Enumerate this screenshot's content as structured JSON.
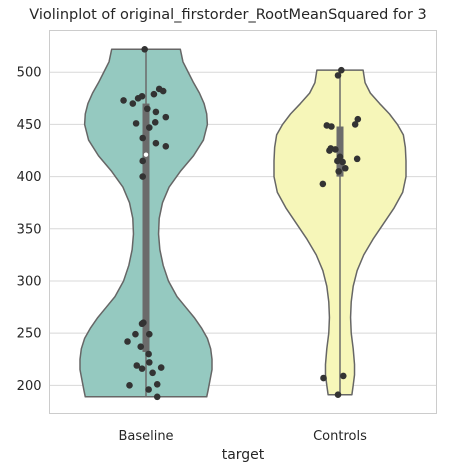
{
  "chart_data": {
    "type": "violin",
    "title": "Violinplot of original_firstorder_RootMeanSquared for 3",
    "xlabel": "target",
    "ylabel": "",
    "categories": [
      "Baseline",
      "Controls"
    ],
    "ylim": [
      173,
      540
    ],
    "yticks": [
      200,
      250,
      300,
      350,
      400,
      450,
      500
    ],
    "grid": "horizontal",
    "colors": {
      "Baseline": "#95c9c0",
      "Controls": "#f6f6b9",
      "box": "#6b6b6b",
      "points": "#333333",
      "edge": "#666666",
      "grid": "#d8d8d8"
    },
    "violins": [
      {
        "category": "Baseline",
        "range": [
          189,
          522
        ],
        "median": 421,
        "q1": 232,
        "q3": 470,
        "profile": [
          [
            189,
            0.92
          ],
          [
            195,
            0.94
          ],
          [
            205,
            0.97
          ],
          [
            215,
            1.0
          ],
          [
            225,
            1.0
          ],
          [
            235,
            0.98
          ],
          [
            245,
            0.93
          ],
          [
            255,
            0.84
          ],
          [
            265,
            0.73
          ],
          [
            275,
            0.6
          ],
          [
            285,
            0.47
          ],
          [
            300,
            0.34
          ],
          [
            315,
            0.26
          ],
          [
            330,
            0.21
          ],
          [
            345,
            0.19
          ],
          [
            360,
            0.2
          ],
          [
            375,
            0.25
          ],
          [
            390,
            0.35
          ],
          [
            405,
            0.52
          ],
          [
            420,
            0.72
          ],
          [
            435,
            0.87
          ],
          [
            450,
            0.93
          ],
          [
            460,
            0.92
          ],
          [
            470,
            0.88
          ],
          [
            480,
            0.81
          ],
          [
            490,
            0.72
          ],
          [
            500,
            0.64
          ],
          [
            510,
            0.56
          ],
          [
            522,
            0.52
          ]
        ],
        "points": [
          [
            -0.02,
            522
          ],
          [
            0.2,
            484
          ],
          [
            0.26,
            482
          ],
          [
            0.12,
            479
          ],
          [
            -0.06,
            477
          ],
          [
            -0.12,
            475
          ],
          [
            -0.34,
            473
          ],
          [
            -0.2,
            470
          ],
          [
            0.02,
            465
          ],
          [
            0.15,
            462
          ],
          [
            0.3,
            457
          ],
          [
            0.14,
            452
          ],
          [
            -0.15,
            451
          ],
          [
            0.05,
            447
          ],
          [
            -0.05,
            437
          ],
          [
            0.15,
            432
          ],
          [
            0.3,
            429
          ],
          [
            -0.05,
            415
          ],
          [
            -0.05,
            400
          ],
          [
            -0.04,
            260
          ],
          [
            -0.06,
            259
          ],
          [
            -0.16,
            249
          ],
          [
            0.05,
            249
          ],
          [
            -0.28,
            242
          ],
          [
            -0.08,
            237
          ],
          [
            0.04,
            230
          ],
          [
            0.05,
            222
          ],
          [
            -0.14,
            219
          ],
          [
            0.23,
            217
          ],
          [
            -0.06,
            216
          ],
          [
            0.1,
            212
          ],
          [
            -0.25,
            200
          ],
          [
            0.04,
            196
          ],
          [
            0.17,
            201
          ],
          [
            0.17,
            189
          ]
        ]
      },
      {
        "category": "Controls",
        "range": [
          191,
          502
        ],
        "median": 419,
        "q1": 400,
        "q3": 448,
        "profile": [
          [
            191,
            0.18
          ],
          [
            200,
            0.2
          ],
          [
            210,
            0.22
          ],
          [
            220,
            0.22
          ],
          [
            235,
            0.2
          ],
          [
            250,
            0.17
          ],
          [
            265,
            0.16
          ],
          [
            280,
            0.17
          ],
          [
            295,
            0.2
          ],
          [
            310,
            0.26
          ],
          [
            325,
            0.36
          ],
          [
            340,
            0.5
          ],
          [
            355,
            0.66
          ],
          [
            370,
            0.82
          ],
          [
            385,
            0.95
          ],
          [
            400,
            1.0
          ],
          [
            415,
            1.0
          ],
          [
            428,
            0.99
          ],
          [
            440,
            0.96
          ],
          [
            450,
            0.87
          ],
          [
            460,
            0.75
          ],
          [
            470,
            0.6
          ],
          [
            480,
            0.46
          ],
          [
            490,
            0.38
          ],
          [
            502,
            0.35
          ]
        ],
        "points": [
          [
            0.02,
            502
          ],
          [
            -0.03,
            497
          ],
          [
            0.27,
            455
          ],
          [
            0.23,
            450
          ],
          [
            -0.2,
            449
          ],
          [
            -0.13,
            448
          ],
          [
            -0.14,
            427
          ],
          [
            -0.07,
            426
          ],
          [
            -0.16,
            425
          ],
          [
            0.0,
            419
          ],
          [
            -0.04,
            415
          ],
          [
            0.04,
            414
          ],
          [
            0.26,
            417
          ],
          [
            0.08,
            408
          ],
          [
            -0.02,
            405
          ],
          [
            -0.26,
            393
          ],
          [
            -0.25,
            207
          ],
          [
            0.05,
            209
          ],
          [
            -0.03,
            191
          ]
        ]
      }
    ]
  }
}
